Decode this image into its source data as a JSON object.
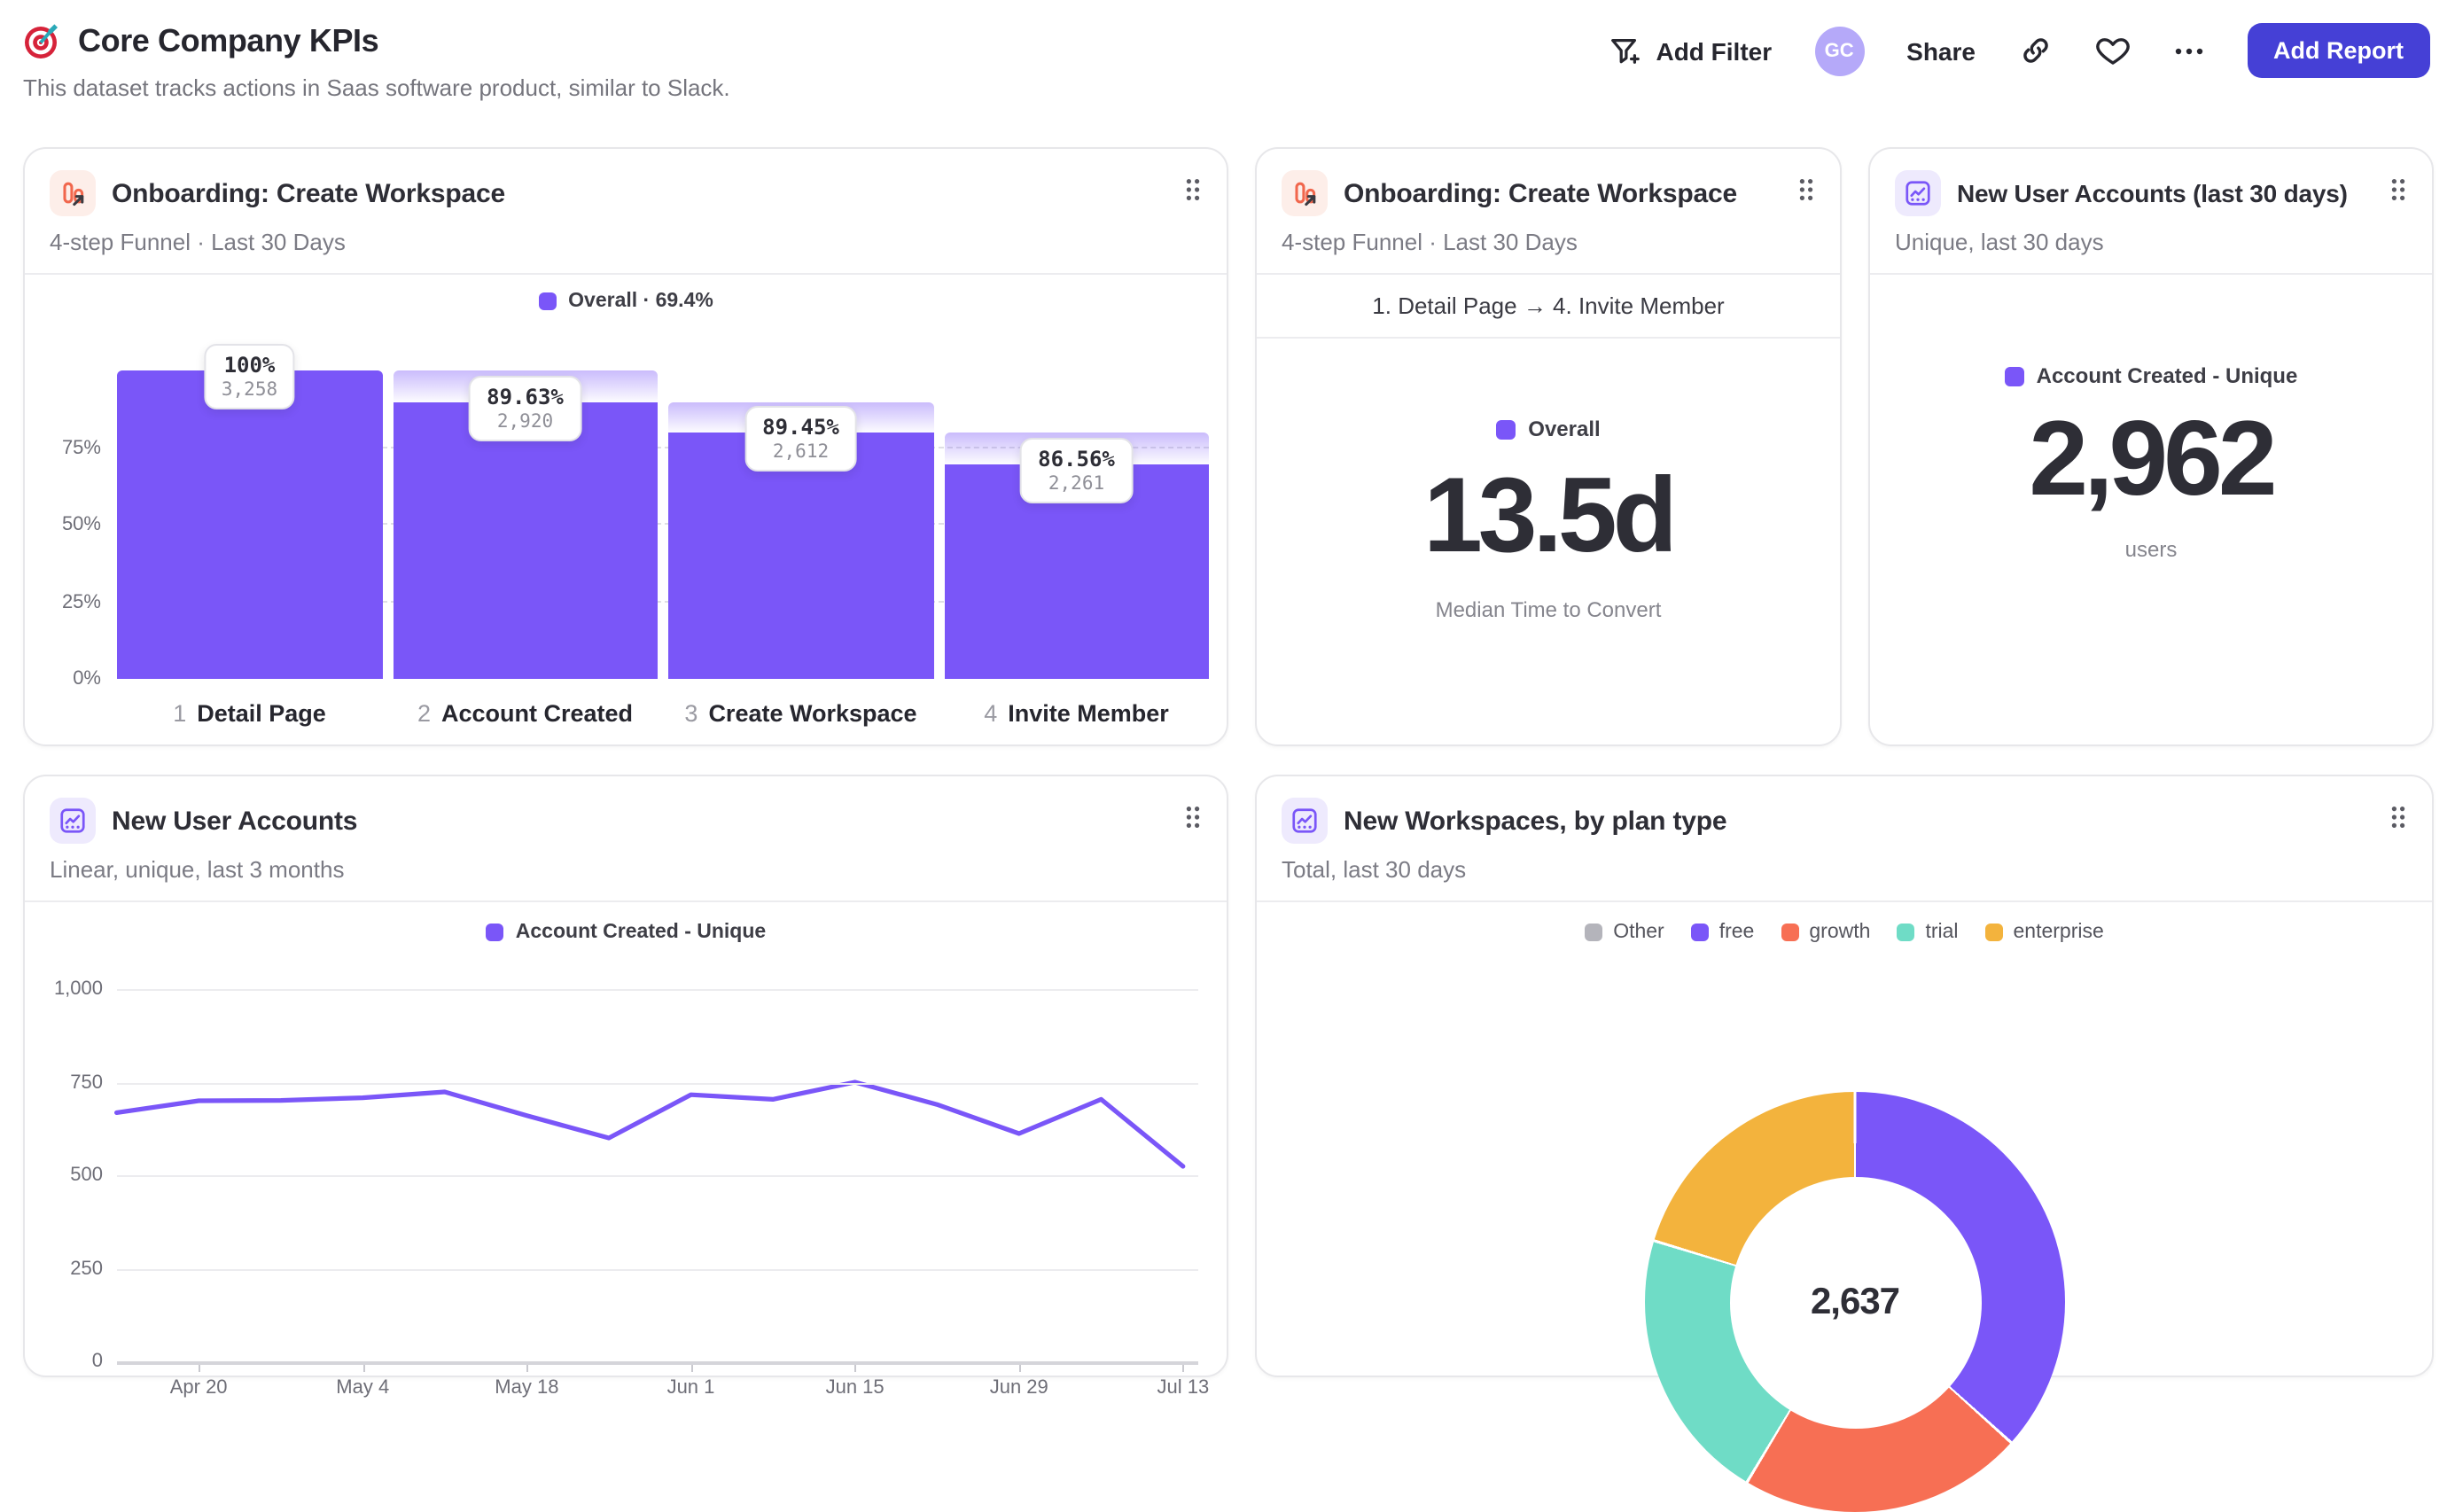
{
  "header": {
    "title": "Core Company KPIs",
    "subtitle": "This dataset tracks actions in Saas software product, similar to Slack.",
    "toolbar": {
      "add_filter": "Add Filter",
      "avatar_initials": "GC",
      "share": "Share",
      "add_report": "Add Report"
    }
  },
  "icons": {
    "page": "target-icon",
    "funnel_card": "funnel-arrow-icon",
    "insights_card": "line-chart-icon",
    "drag": "drag-handle-icon",
    "filter": "filter-plus-icon",
    "link": "link-icon",
    "favorite": "heart-icon",
    "more": "ellipsis-icon"
  },
  "colors": {
    "accent_purple": "#7a56f8",
    "button_indigo": "#4540d6",
    "avatar_purple": "#b5a9f9",
    "icon_orange": "#f1674d",
    "coral": "#f76f54",
    "teal": "#6fdcc6",
    "amber": "#f3b33d",
    "gray": "#b4b4bb"
  },
  "cards": {
    "funnel": {
      "title": "Onboarding: Create Workspace",
      "subtitle": "4-step Funnel · Last 30 Days",
      "legend": "Overall · 69.4%"
    },
    "time_to_convert": {
      "title": "Onboarding: Create Workspace",
      "subtitle": "4-step Funnel · Last 30 Days",
      "range": "1. Detail Page → 4. Invite Member",
      "legend": "Overall",
      "value": "13.5d",
      "caption": "Median Time to Convert"
    },
    "new_accounts_30d": {
      "title": "New User Accounts (last 30 days)",
      "subtitle": "Unique, last 30 days",
      "legend": "Account Created - Unique",
      "value": "2,962",
      "caption": "users"
    },
    "accounts_trend": {
      "title": "New User Accounts",
      "subtitle": "Linear, unique, last 3 months",
      "legend": "Account Created - Unique"
    },
    "workspaces_by_plan": {
      "title": "New Workspaces, by plan type",
      "subtitle": "Total, last 30 days"
    }
  },
  "chart_data": [
    {
      "type": "bar",
      "subtype": "funnel",
      "title": "Onboarding: Create Workspace",
      "series_name": "Overall",
      "overall_conversion": "69.4%",
      "step_numbers": [
        "1",
        "2",
        "3",
        "4"
      ],
      "categories": [
        "Detail Page",
        "Account Created",
        "Create Workspace",
        "Invite Member"
      ],
      "counts": [
        3258,
        2920,
        2612,
        2261
      ],
      "count_labels": [
        "3,258",
        "2,920",
        "2,612",
        "2,261"
      ],
      "step_conversion_labels": [
        "100%",
        "89.63%",
        "89.45%",
        "86.56%"
      ],
      "overall_fractions": [
        1.0,
        0.8963,
        0.8017,
        0.694
      ],
      "y_ticks": [
        "75%",
        "50%",
        "25%",
        "0%"
      ],
      "ylim": [
        0,
        1
      ],
      "bar_color": "#7a56f8"
    },
    {
      "type": "line",
      "title": "New User Accounts",
      "series_name": "Account Created - Unique",
      "x": [
        "Apr 13",
        "Apr 20",
        "Apr 27",
        "May 4",
        "May 11",
        "May 18",
        "May 25",
        "Jun 1",
        "Jun 8",
        "Jun 15",
        "Jun 22",
        "Jun 29",
        "Jul 6",
        "Jul 13"
      ],
      "values": [
        668,
        700,
        701,
        708,
        724,
        660,
        600,
        716,
        704,
        750,
        690,
        612,
        704,
        524
      ],
      "x_tick_indices": [
        1,
        3,
        5,
        7,
        9,
        11,
        13
      ],
      "x_tick_labels": [
        "Apr 20",
        "May 4",
        "May 18",
        "Jun 1",
        "Jun 15",
        "Jun 29",
        "Jul 13"
      ],
      "y_ticks": [
        "1,000",
        "750",
        "500",
        "250",
        "0"
      ],
      "ylim": [
        0,
        1000
      ],
      "grid": true,
      "line_color": "#7a56f8"
    },
    {
      "type": "pie",
      "donut": true,
      "title": "New Workspaces, by plan type",
      "center_label": "2,637",
      "total": 2637,
      "slices": [
        {
          "label": "free",
          "value": 967,
          "color": "#7a56f8"
        },
        {
          "label": "growth",
          "value": 578,
          "color": "#f76f54"
        },
        {
          "label": "trial",
          "value": 557,
          "color": "#6fdcc6"
        },
        {
          "label": "enterprise",
          "value": 535,
          "color": "#f3b33d"
        }
      ],
      "legend": [
        {
          "label": "Other",
          "color": "#b4b4bb"
        },
        {
          "label": "free",
          "color": "#7a56f8"
        },
        {
          "label": "growth",
          "color": "#f76f54"
        },
        {
          "label": "trial",
          "color": "#6fdcc6"
        },
        {
          "label": "enterprise",
          "color": "#f3b33d"
        }
      ],
      "legend_position": "top"
    }
  ]
}
